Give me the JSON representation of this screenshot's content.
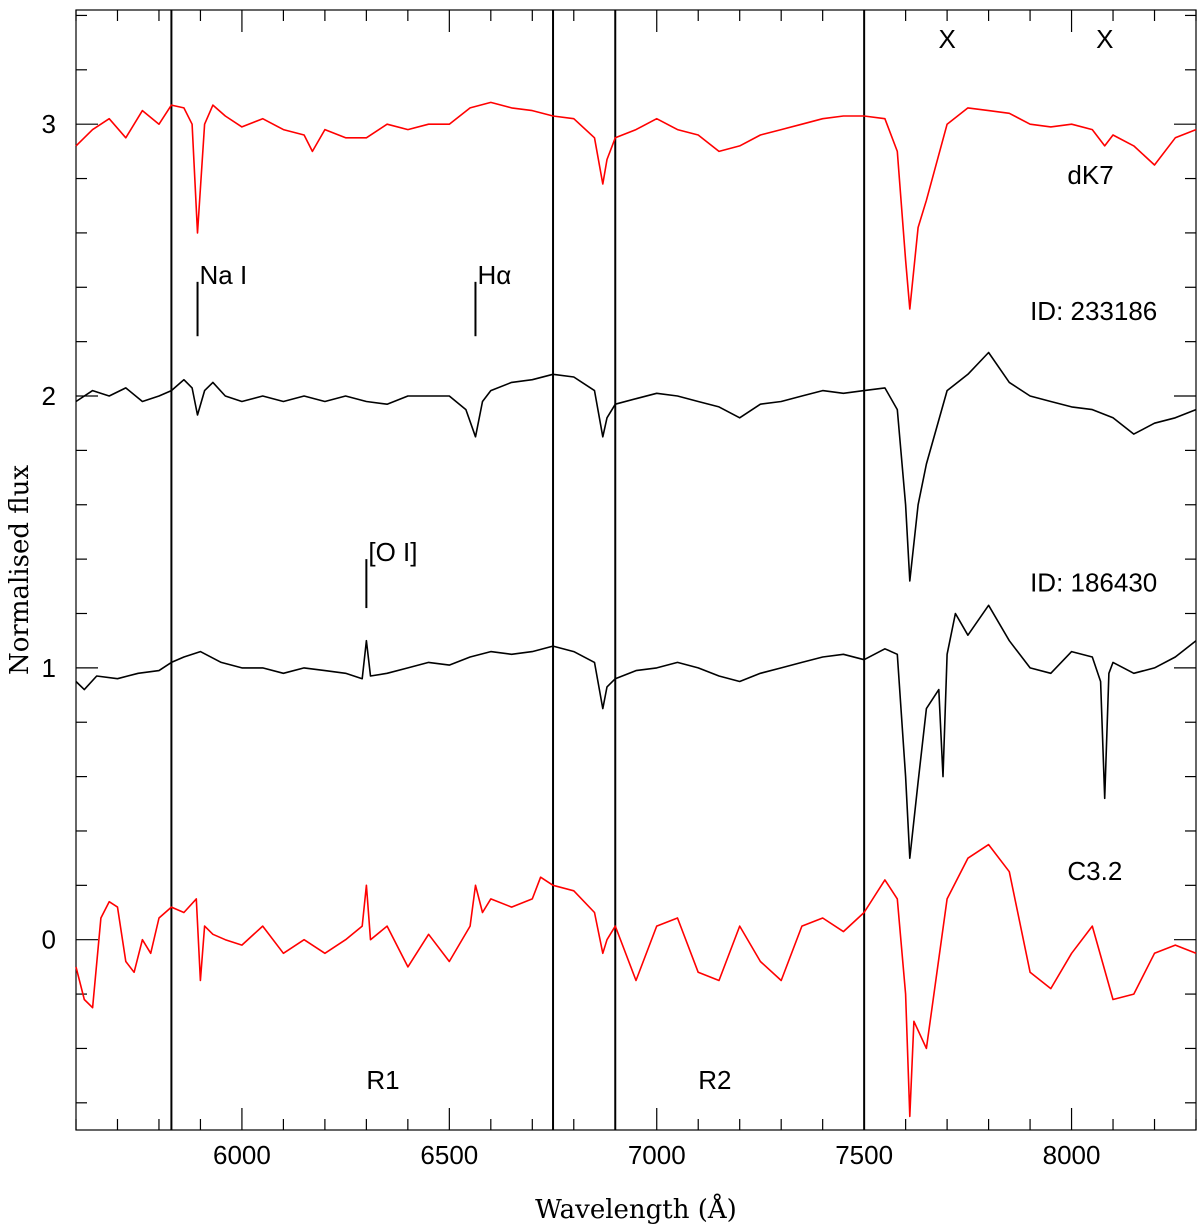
{
  "chart_data": {
    "type": "line",
    "title": "",
    "xlabel": "Wavelength (Å)",
    "ylabel": "Normalised flux",
    "xlim": [
      5600,
      8300
    ],
    "ylim": [
      -0.7,
      3.42
    ],
    "xticks": [
      6000,
      6500,
      7000,
      7500,
      8000
    ],
    "yticks": [
      0,
      1,
      2,
      3
    ],
    "grid": false,
    "legend": "none",
    "vertical_lines": [
      5830,
      6750,
      6900,
      7500
    ],
    "region_labels": [
      {
        "text": "R1",
        "x": 6300,
        "y": -0.55
      },
      {
        "text": "R2",
        "x": 7100,
        "y": -0.55
      }
    ],
    "telluric_marks": [
      {
        "text": "X",
        "x": 7700,
        "y": 3.28
      },
      {
        "text": "X",
        "x": 8080,
        "y": 3.28
      }
    ],
    "line_markers": [
      {
        "label": "Na I",
        "x": 5893,
        "y_bottom": 2.22,
        "y_top": 2.42
      },
      {
        "label": "Hα",
        "x": 6563,
        "y_bottom": 2.22,
        "y_top": 2.42
      },
      {
        "label": "[O I]",
        "x": 6300,
        "y_bottom": 1.22,
        "y_top": 1.4
      }
    ],
    "series": [
      {
        "name": "dK7",
        "label_pos": {
          "x": 7990,
          "y": 2.78
        },
        "color": "#ff0000",
        "x": [
          5600,
          5640,
          5680,
          5720,
          5760,
          5800,
          5830,
          5860,
          5880,
          5893,
          5910,
          5930,
          5960,
          6000,
          6050,
          6100,
          6150,
          6170,
          6200,
          6250,
          6300,
          6350,
          6400,
          6450,
          6500,
          6550,
          6600,
          6650,
          6700,
          6750,
          6800,
          6850,
          6870,
          6880,
          6900,
          6950,
          7000,
          7050,
          7100,
          7150,
          7200,
          7250,
          7300,
          7350,
          7400,
          7450,
          7500,
          7550,
          7580,
          7600,
          7610,
          7630,
          7650,
          7700,
          7750,
          7800,
          7850,
          7900,
          7950,
          8000,
          8050,
          8080,
          8100,
          8150,
          8200,
          8250,
          8300
        ],
        "y": [
          2.92,
          2.98,
          3.02,
          2.95,
          3.05,
          3.0,
          3.07,
          3.06,
          3.0,
          2.6,
          3.0,
          3.07,
          3.03,
          2.99,
          3.02,
          2.98,
          2.96,
          2.9,
          2.98,
          2.95,
          2.95,
          3.0,
          2.98,
          3.0,
          3.0,
          3.06,
          3.08,
          3.06,
          3.05,
          3.03,
          3.02,
          2.95,
          2.78,
          2.87,
          2.95,
          2.98,
          3.02,
          2.98,
          2.96,
          2.9,
          2.92,
          2.96,
          2.98,
          3.0,
          3.02,
          3.03,
          3.03,
          3.02,
          2.9,
          2.5,
          2.32,
          2.62,
          2.72,
          3.0,
          3.06,
          3.05,
          3.04,
          3.0,
          2.99,
          3.0,
          2.98,
          2.92,
          2.96,
          2.92,
          2.85,
          2.95,
          2.98
        ]
      },
      {
        "name": "ID: 233186",
        "label_pos": {
          "x": 7900,
          "y": 2.28
        },
        "color": "#000000",
        "x": [
          5600,
          5640,
          5680,
          5720,
          5760,
          5800,
          5830,
          5860,
          5880,
          5893,
          5910,
          5930,
          5960,
          6000,
          6050,
          6100,
          6150,
          6200,
          6250,
          6300,
          6350,
          6400,
          6450,
          6500,
          6540,
          6563,
          6580,
          6600,
          6650,
          6700,
          6750,
          6800,
          6850,
          6870,
          6880,
          6900,
          6950,
          7000,
          7050,
          7100,
          7150,
          7200,
          7250,
          7300,
          7350,
          7400,
          7450,
          7500,
          7550,
          7580,
          7600,
          7610,
          7630,
          7650,
          7700,
          7750,
          7800,
          7850,
          7900,
          7950,
          8000,
          8050,
          8100,
          8150,
          8200,
          8250,
          8300
        ],
        "y": [
          1.98,
          2.02,
          2.0,
          2.03,
          1.98,
          2.0,
          2.02,
          2.06,
          2.03,
          1.93,
          2.02,
          2.05,
          2.0,
          1.98,
          2.0,
          1.98,
          2.0,
          1.98,
          2.0,
          1.98,
          1.97,
          2.0,
          2.0,
          2.0,
          1.95,
          1.85,
          1.98,
          2.02,
          2.05,
          2.06,
          2.08,
          2.07,
          2.02,
          1.85,
          1.92,
          1.97,
          1.99,
          2.01,
          2.0,
          1.98,
          1.96,
          1.92,
          1.97,
          1.98,
          2.0,
          2.02,
          2.01,
          2.02,
          2.03,
          1.95,
          1.6,
          1.32,
          1.6,
          1.75,
          2.02,
          2.08,
          2.16,
          2.05,
          2.0,
          1.98,
          1.96,
          1.95,
          1.92,
          1.86,
          1.9,
          1.92,
          1.95
        ]
      },
      {
        "name": "ID: 186430",
        "label_pos": {
          "x": 7900,
          "y": 1.28
        },
        "color": "#000000",
        "x": [
          5600,
          5620,
          5650,
          5700,
          5750,
          5800,
          5830,
          5860,
          5900,
          5950,
          6000,
          6050,
          6100,
          6150,
          6200,
          6250,
          6290,
          6300,
          6310,
          6350,
          6400,
          6450,
          6500,
          6550,
          6600,
          6650,
          6700,
          6750,
          6800,
          6850,
          6870,
          6880,
          6900,
          6950,
          7000,
          7050,
          7100,
          7150,
          7200,
          7250,
          7300,
          7350,
          7400,
          7450,
          7500,
          7550,
          7580,
          7600,
          7610,
          7630,
          7650,
          7680,
          7690,
          7700,
          7720,
          7750,
          7800,
          7850,
          7900,
          7950,
          8000,
          8050,
          8070,
          8080,
          8090,
          8100,
          8150,
          8200,
          8250,
          8300
        ],
        "y": [
          0.95,
          0.92,
          0.97,
          0.96,
          0.98,
          0.99,
          1.02,
          1.04,
          1.06,
          1.02,
          1.0,
          1.0,
          0.98,
          1.0,
          0.99,
          0.98,
          0.96,
          1.1,
          0.97,
          0.98,
          1.0,
          1.02,
          1.01,
          1.04,
          1.06,
          1.05,
          1.06,
          1.08,
          1.06,
          1.02,
          0.85,
          0.93,
          0.96,
          0.99,
          1.0,
          1.02,
          1.0,
          0.97,
          0.95,
          0.98,
          1.0,
          1.02,
          1.04,
          1.05,
          1.03,
          1.07,
          1.05,
          0.6,
          0.3,
          0.58,
          0.85,
          0.92,
          0.6,
          1.05,
          1.2,
          1.12,
          1.23,
          1.1,
          1.0,
          0.98,
          1.06,
          1.04,
          0.95,
          0.52,
          0.98,
          1.02,
          0.98,
          1.0,
          1.04,
          1.1
        ]
      },
      {
        "name": "C3.2",
        "label_pos": {
          "x": 7990,
          "y": 0.22
        },
        "color": "#ff0000",
        "x": [
          5600,
          5620,
          5640,
          5660,
          5680,
          5700,
          5720,
          5740,
          5760,
          5780,
          5800,
          5830,
          5860,
          5890,
          5900,
          5910,
          5930,
          5960,
          6000,
          6050,
          6100,
          6150,
          6200,
          6250,
          6290,
          6300,
          6310,
          6350,
          6400,
          6450,
          6500,
          6550,
          6563,
          6580,
          6600,
          6650,
          6700,
          6720,
          6750,
          6800,
          6850,
          6870,
          6880,
          6900,
          6950,
          7000,
          7050,
          7100,
          7150,
          7200,
          7250,
          7300,
          7350,
          7400,
          7450,
          7500,
          7550,
          7580,
          7600,
          7610,
          7620,
          7650,
          7700,
          7750,
          7800,
          7850,
          7900,
          7950,
          8000,
          8050,
          8100,
          8150,
          8200,
          8250,
          8300
        ],
        "y": [
          -0.1,
          -0.22,
          -0.25,
          0.08,
          0.14,
          0.12,
          -0.08,
          -0.12,
          0.0,
          -0.05,
          0.08,
          0.12,
          0.1,
          0.15,
          -0.15,
          0.05,
          0.02,
          0.0,
          -0.02,
          0.05,
          -0.05,
          0.0,
          -0.05,
          0.0,
          0.05,
          0.2,
          0.0,
          0.05,
          -0.1,
          0.02,
          -0.08,
          0.05,
          0.2,
          0.1,
          0.15,
          0.12,
          0.15,
          0.23,
          0.2,
          0.18,
          0.1,
          -0.05,
          0.0,
          0.05,
          -0.15,
          0.05,
          0.08,
          -0.12,
          -0.15,
          0.05,
          -0.08,
          -0.15,
          0.05,
          0.08,
          0.03,
          0.1,
          0.22,
          0.15,
          -0.2,
          -0.65,
          -0.3,
          -0.4,
          0.15,
          0.3,
          0.35,
          0.25,
          -0.12,
          -0.18,
          -0.05,
          0.05,
          -0.22,
          -0.2,
          -0.05,
          -0.02,
          -0.05
        ]
      }
    ]
  }
}
